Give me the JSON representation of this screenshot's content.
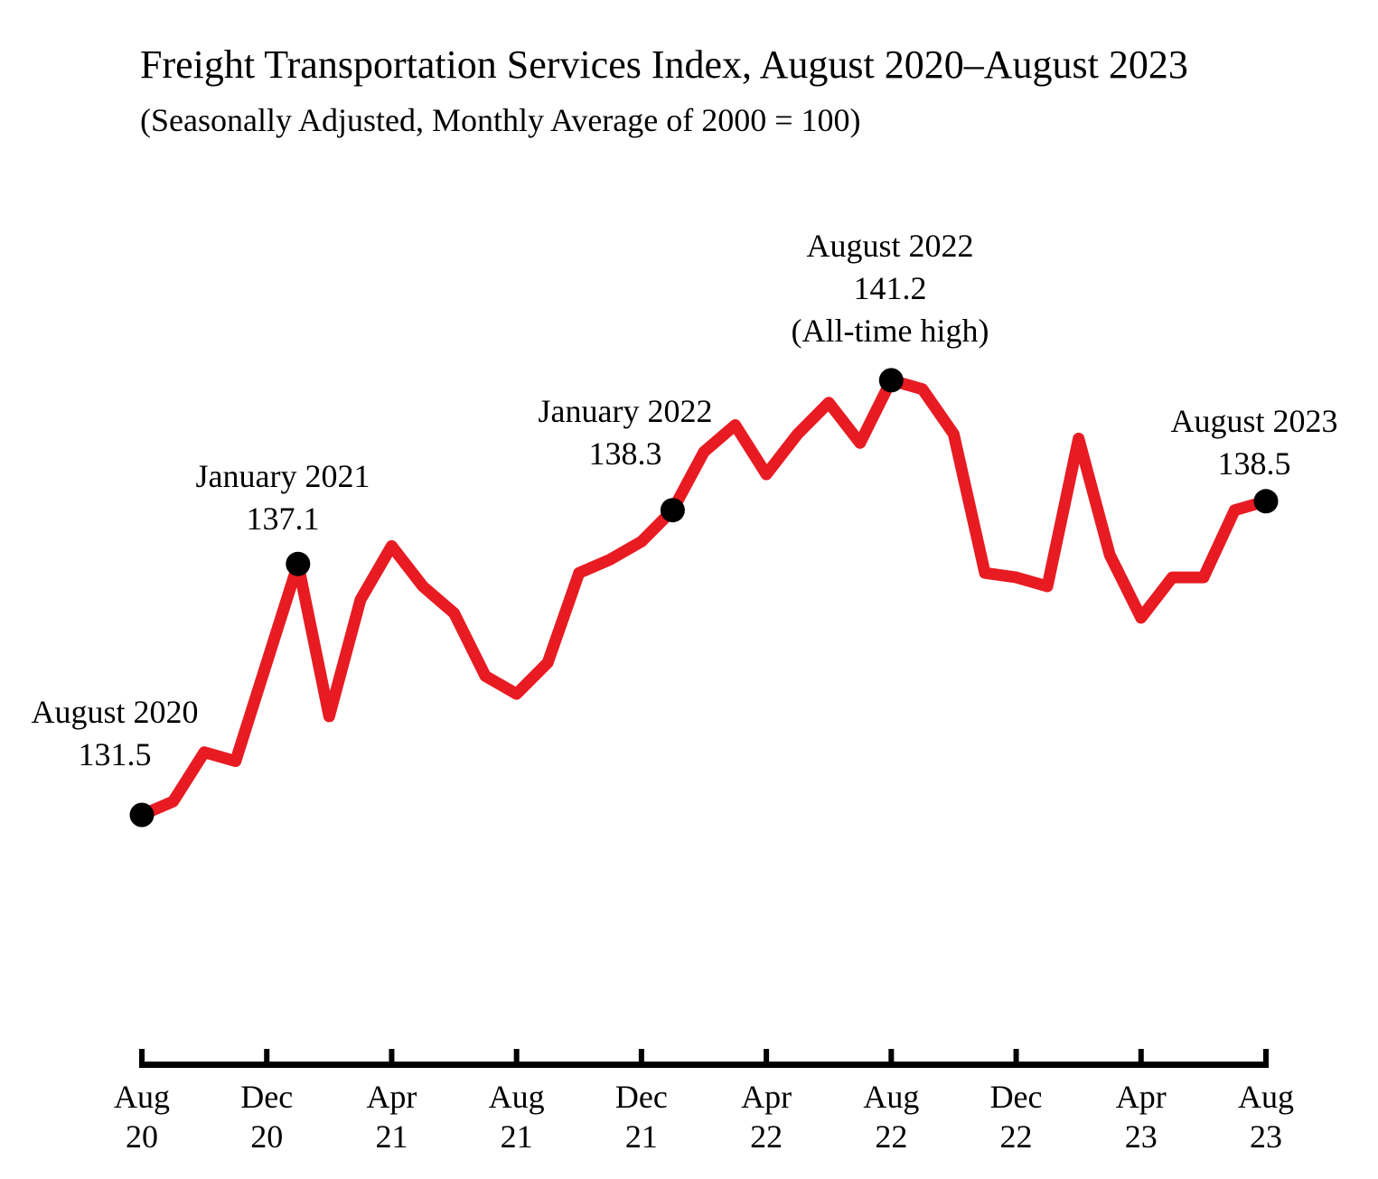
{
  "chart_data": {
    "type": "line",
    "title": "Freight Transportation Services Index, August 2020–August 2023",
    "subtitle": "(Seasonally Adjusted, Monthly Average of 2000 = 100)",
    "categories": [
      "Aug 2020",
      "Sep 2020",
      "Oct 2020",
      "Nov 2020",
      "Dec 2020",
      "Jan 2021",
      "Feb 2021",
      "Mar 2021",
      "Apr 2021",
      "May 2021",
      "Jun 2021",
      "Jul 2021",
      "Aug 2021",
      "Sep 2021",
      "Oct 2021",
      "Nov 2021",
      "Dec 2021",
      "Jan 2022",
      "Feb 2022",
      "Mar 2022",
      "Apr 2022",
      "May 2022",
      "Jun 2022",
      "Jul 2022",
      "Aug 2022",
      "Sep 2022",
      "Oct 2022",
      "Nov 2022",
      "Dec 2022",
      "Jan 2023",
      "Feb 2023",
      "Mar 2023",
      "Apr 2023",
      "May 2023",
      "Jun 2023",
      "Jul 2023",
      "Aug 2023"
    ],
    "series": [
      {
        "name": "Freight Transportation Services Index (Seasonally Adjusted)",
        "values": [
          131.5,
          131.8,
          132.9,
          132.7,
          134.9,
          137.1,
          133.7,
          136.3,
          137.5,
          136.6,
          136.0,
          134.6,
          134.2,
          134.9,
          136.9,
          137.2,
          137.6,
          138.3,
          139.6,
          140.2,
          139.1,
          140.0,
          140.7,
          139.8,
          141.2,
          141.0,
          140.0,
          136.9,
          136.8,
          136.6,
          139.9,
          137.3,
          135.9,
          136.8,
          136.8,
          138.3,
          138.5
        ]
      }
    ],
    "x_tick_labels": [
      [
        "Aug",
        "20"
      ],
      [
        "Dec",
        "20"
      ],
      [
        "Apr",
        "21"
      ],
      [
        "Aug",
        "21"
      ],
      [
        "Dec",
        "21"
      ],
      [
        "Apr",
        "22"
      ],
      [
        "Aug",
        "22"
      ],
      [
        "Dec",
        "22"
      ],
      [
        "Apr",
        "23"
      ],
      [
        "Aug",
        "23"
      ]
    ],
    "x_tick_month_indices": [
      0,
      4,
      8,
      12,
      16,
      20,
      24,
      28,
      32,
      36
    ],
    "marker_month_indices": [
      0,
      5,
      17,
      24,
      36
    ],
    "annotations": [
      {
        "lines": [
          "August 2020",
          "131.5"
        ],
        "month": "Aug 2020",
        "value": 131.5
      },
      {
        "lines": [
          "January 2021",
          "137.1"
        ],
        "month": "Jan 2021",
        "value": 137.1
      },
      {
        "lines": [
          "January 2022",
          "138.3"
        ],
        "month": "Jan 2022",
        "value": 138.3
      },
      {
        "lines": [
          "August 2022",
          "141.2",
          "(All-time high)"
        ],
        "month": "Aug 2022",
        "value": 141.2
      },
      {
        "lines": [
          "August 2023",
          "138.5"
        ],
        "month": "Aug 2023",
        "value": 138.5
      }
    ],
    "line_color": "#e81b23",
    "marker_color": "#000000",
    "axis_color": "#000000",
    "ylim": [
      130,
      142
    ],
    "grid": false,
    "legend": false
  }
}
